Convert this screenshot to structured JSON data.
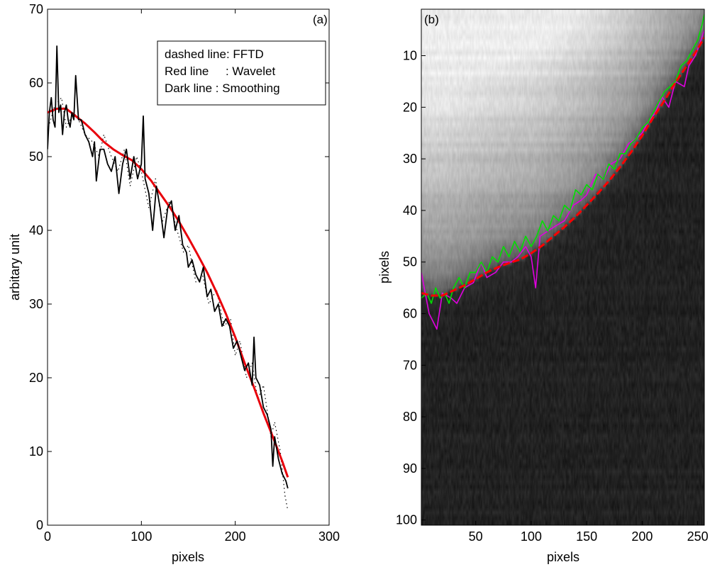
{
  "chart_data": [
    {
      "type": "line",
      "panel_label": "(a)",
      "xlabel": "pixels",
      "ylabel": "arbitary unit",
      "xlim": [
        0,
        300
      ],
      "ylim": [
        0,
        70
      ],
      "xticks": [
        0,
        100,
        200,
        300
      ],
      "yticks": [
        0,
        10,
        20,
        30,
        40,
        50,
        60,
        70
      ],
      "legend": {
        "placement": "top-right",
        "entries": [
          "dashed line: FFTD",
          "Red line     : Wavelet",
          "Dark line : Smoothing"
        ]
      },
      "series": [
        {
          "key": "fftd",
          "style": "dotted",
          "color": "#000000",
          "x": [
            1,
            8,
            15,
            20,
            28,
            33,
            40,
            48,
            55,
            60,
            68,
            75,
            82,
            88,
            95,
            100,
            108,
            115,
            122,
            130,
            138,
            145,
            150,
            158,
            165,
            172,
            180,
            188,
            195,
            200,
            205,
            212,
            218,
            224,
            230,
            238,
            242,
            248,
            253,
            256
          ],
          "y": [
            54,
            57,
            58,
            54,
            56,
            55,
            53,
            52,
            50,
            53,
            50,
            48,
            51,
            46,
            50,
            48,
            43,
            47,
            41,
            44,
            40,
            37,
            38,
            33,
            34,
            30,
            32,
            27,
            28,
            23,
            25,
            20,
            22,
            17,
            19,
            12,
            14,
            10,
            4,
            2
          ]
        },
        {
          "key": "wavelet",
          "name": "Wavelet",
          "style": "solid",
          "color": "#e8000b",
          "x": [
            0,
            10,
            20,
            30,
            40,
            50,
            60,
            70,
            80,
            90,
            100,
            110,
            120,
            130,
            140,
            150,
            160,
            170,
            180,
            190,
            200,
            210,
            220,
            230,
            240,
            250,
            256
          ],
          "y": [
            56,
            56.5,
            56.5,
            55.5,
            54.5,
            53.3,
            52,
            51,
            50.2,
            49.5,
            48.3,
            46.8,
            45,
            43.2,
            41.2,
            39,
            36.7,
            34.3,
            31.6,
            28.7,
            25.5,
            22,
            18.7,
            15.2,
            12,
            8.7,
            6.5
          ]
        },
        {
          "key": "smoothing",
          "name": "Smoothing",
          "style": "solid",
          "color": "#000000",
          "x": [
            0,
            2,
            4,
            6,
            8,
            10,
            12,
            14,
            16,
            18,
            20,
            22,
            24,
            26,
            28,
            30,
            33,
            36,
            40,
            44,
            48,
            50,
            52,
            56,
            60,
            64,
            68,
            72,
            76,
            80,
            84,
            88,
            92,
            96,
            100,
            102,
            104,
            108,
            112,
            116,
            120,
            124,
            128,
            132,
            136,
            140,
            144,
            148,
            150,
            154,
            158,
            162,
            166,
            170,
            174,
            178,
            182,
            186,
            190,
            194,
            198,
            202,
            206,
            210,
            214,
            218,
            220,
            222,
            226,
            230,
            234,
            238,
            240,
            242,
            246,
            250,
            254,
            256
          ],
          "y": [
            51,
            56,
            58,
            55,
            54,
            65,
            56,
            57,
            53,
            56,
            57,
            55,
            54,
            56,
            55,
            61,
            55,
            55,
            53,
            52,
            50,
            52,
            46.7,
            51,
            51,
            49,
            48,
            50,
            45,
            49,
            51,
            47,
            50,
            47,
            49,
            55.5,
            47,
            45,
            40,
            46,
            43,
            39,
            43,
            44,
            40,
            42,
            38,
            37,
            35,
            36,
            34,
            33,
            35,
            31,
            32,
            29,
            30,
            27,
            28,
            27,
            24,
            25,
            23,
            21,
            22,
            19,
            25.5,
            20,
            19,
            16,
            15,
            13,
            8,
            12,
            9,
            7,
            6,
            5
          ]
        }
      ]
    },
    {
      "type": "heatmap",
      "panel_label": "(b)",
      "xlabel": "pixels",
      "ylabel": "pixels",
      "xlim": [
        1,
        256
      ],
      "ylim": [
        101,
        1
      ],
      "xticks": [
        50,
        100,
        150,
        200,
        250
      ],
      "yticks": [
        10,
        20,
        30,
        40,
        50,
        60,
        70,
        80,
        90,
        100
      ],
      "colormap": "gray",
      "overlays": [
        {
          "key": "fftd_trace",
          "color": "#e000e0",
          "x": [
            1,
            8,
            15,
            20,
            28,
            33,
            40,
            48,
            55,
            60,
            68,
            75,
            82,
            88,
            95,
            100,
            104,
            108,
            115,
            122,
            130,
            138,
            145,
            150,
            158,
            165,
            172,
            180,
            188,
            195,
            200,
            205,
            212,
            218,
            224,
            230,
            238,
            242,
            248,
            253,
            256
          ],
          "y": [
            52,
            60,
            63,
            56,
            57,
            58,
            55,
            54,
            50,
            53,
            52,
            50,
            50,
            49,
            47,
            49,
            55,
            45,
            44,
            43,
            42,
            39,
            38,
            37,
            33,
            34,
            31,
            30,
            27,
            26,
            25,
            23,
            21,
            18,
            20,
            15,
            16,
            12,
            10,
            7,
            5
          ]
        },
        {
          "key": "smoothing_trace",
          "color": "#00e000",
          "x": [
            1,
            6,
            10,
            14,
            18,
            22,
            26,
            30,
            35,
            40,
            45,
            50,
            55,
            60,
            65,
            70,
            75,
            80,
            85,
            90,
            95,
            100,
            105,
            110,
            115,
            120,
            125,
            130,
            135,
            140,
            145,
            150,
            155,
            160,
            165,
            170,
            175,
            180,
            185,
            190,
            195,
            200,
            205,
            210,
            215,
            220,
            225,
            230,
            235,
            240,
            245,
            250,
            254,
            256
          ],
          "y": [
            57,
            56,
            58,
            55,
            57,
            56,
            58,
            55,
            53,
            55,
            52,
            52,
            50,
            52,
            49,
            50,
            47,
            49,
            46,
            48,
            45,
            47,
            45,
            42,
            44,
            41,
            42,
            39,
            40,
            36,
            37,
            35,
            36,
            33,
            34,
            31,
            32,
            29,
            29,
            27,
            26,
            24,
            23,
            21,
            19,
            17,
            16,
            15,
            12,
            11,
            9,
            7,
            4,
            2
          ]
        },
        {
          "key": "wavelet_trace",
          "color": "#ff0000",
          "x": [
            1,
            10,
            20,
            30,
            40,
            50,
            60,
            70,
            80,
            90,
            100,
            110,
            120,
            130,
            140,
            150,
            160,
            170,
            180,
            190,
            200,
            210,
            220,
            230,
            240,
            250,
            256
          ],
          "y": [
            56,
            56.5,
            56.5,
            55.5,
            54.5,
            53.3,
            52,
            51,
            50.2,
            49.5,
            48.3,
            46.8,
            45,
            43.2,
            41.2,
            39,
            36.7,
            34.3,
            31.6,
            28.7,
            25.5,
            22,
            18.7,
            15.2,
            12,
            8.7,
            6.5
          ]
        }
      ]
    }
  ]
}
